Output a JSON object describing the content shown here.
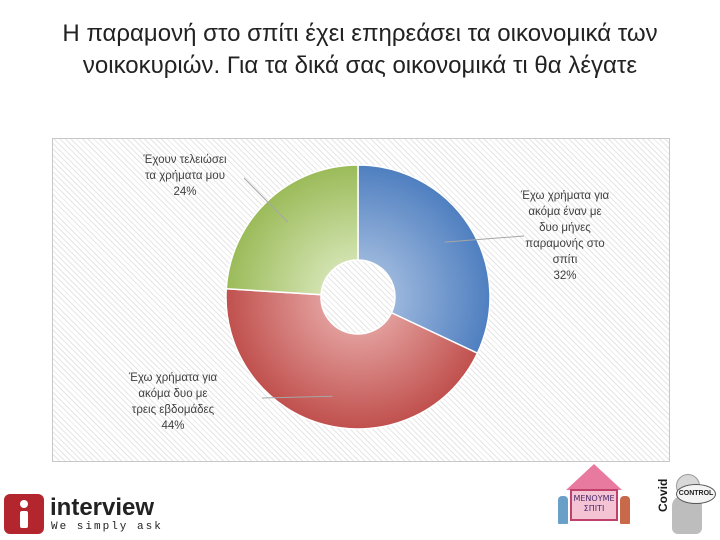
{
  "title_line1": "Η παραμονή στο σπίτι έχει επηρεάσει τα οικονομικά των",
  "title_line2": "νοικοκυριών. Για τα δικά σας οικονομικά τι θα λέγατε",
  "chart_data": {
    "type": "pie",
    "donut": true,
    "slices": [
      {
        "label_lines": [
          "Έχω χρήματα για",
          "ακόμα έναν με",
          "δυο μήνες",
          "παραμονής στο",
          "σπίτι"
        ],
        "value": 32,
        "value_label": "32%",
        "color_from": "#4f7fc0",
        "color_to": "#9db8dd"
      },
      {
        "label_lines": [
          "Έχω χρήματα για",
          "ακόμα δυο με",
          "τρεις εβδομάδες"
        ],
        "value": 44,
        "value_label": "44%",
        "color_from": "#c0504d",
        "color_to": "#e3a09e"
      },
      {
        "label_lines": [
          "Έχουν τελειώσει",
          "τα χρήματα μου"
        ],
        "value": 24,
        "value_label": "24%",
        "color_from": "#9bbb59",
        "color_to": "#d4e4b3"
      }
    ],
    "start_angle_deg": 0,
    "legend": "none"
  },
  "logo": {
    "name": "interview",
    "tagline": "We simply ask"
  },
  "badge_text": "ΜΕΝΟΥΜΕ ΣΠΙΤΙ",
  "mascot": {
    "vertical_text": "Covid",
    "sign_text": "CONTROL"
  }
}
